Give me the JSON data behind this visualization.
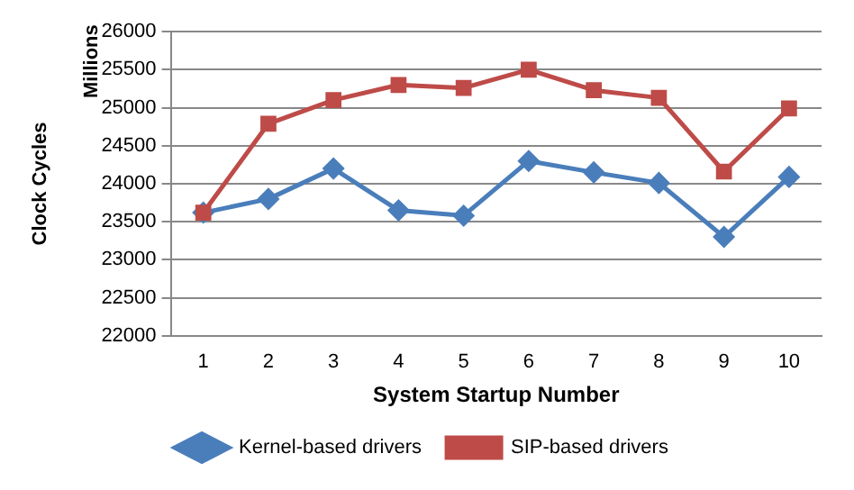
{
  "chart_data": {
    "type": "line",
    "xlabel": "System Startup Number",
    "ylabel": "Clock Cycles",
    "annotations": [
      "Millions"
    ],
    "categories": [
      "1",
      "2",
      "3",
      "4",
      "5",
      "6",
      "7",
      "8",
      "9",
      "10"
    ],
    "series": [
      {
        "name": "Kernel-based drivers",
        "color": "#4a7ebb",
        "marker": "diamond",
        "values": [
          23620,
          23800,
          24200,
          23650,
          23580,
          24300,
          24150,
          24010,
          23300,
          24090
        ]
      },
      {
        "name": "SIP-based drivers",
        "color": "#be4b48",
        "marker": "square",
        "values": [
          23620,
          24790,
          25100,
          25300,
          25260,
          25500,
          25230,
          25130,
          24160,
          24990
        ]
      }
    ],
    "ylim": [
      22000,
      26000
    ],
    "yticks": [
      22000,
      22500,
      23000,
      23500,
      24000,
      24500,
      25000,
      25500,
      26000
    ],
    "grid": "y",
    "legend": "bottom",
    "line_style": "solid"
  }
}
